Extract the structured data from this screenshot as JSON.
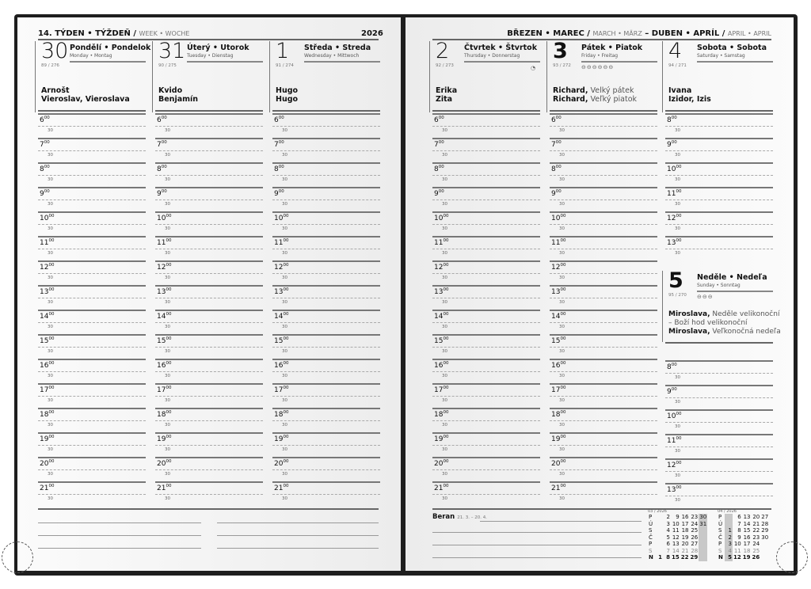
{
  "header_left": {
    "week_bold": "14. TÝDEN • TÝŽDEŇ /",
    "week_light": "WEEK • WOCHE",
    "year": "2026"
  },
  "header_right": {
    "m1_bold": "BŘEZEN • MAREC /",
    "m1_light": "MARCH • MÄRZ",
    "dash": "–",
    "m2_bold": "DUBEN • APRÍL /",
    "m2_light": "APRIL • APRIL"
  },
  "days": [
    {
      "num": "30",
      "count": "89 / 276",
      "name": "Pondělí • Pondelok",
      "sub": "Monday • Montag",
      "names": [
        [
          "Arnošt",
          ""
        ],
        [
          "Vieroslav, Vieroslava",
          ""
        ]
      ],
      "symbols": ""
    },
    {
      "num": "31",
      "count": "90 / 275",
      "name": "Úterý • Utorok",
      "sub": "Tuesday • Dienstag",
      "names": [
        [
          "Kvido",
          ""
        ],
        [
          "Benjamín",
          ""
        ]
      ],
      "symbols": ""
    },
    {
      "num": "1",
      "count": "91 / 274",
      "name": "Středa • Streda",
      "sub": "Wednesday • Mittwoch",
      "names": [
        [
          "Hugo",
          ""
        ],
        [
          "Hugo",
          ""
        ]
      ],
      "symbols": ""
    },
    {
      "num": "2",
      "count": "92 / 273",
      "name": "Čtvrtek • Štvrtok",
      "sub": "Thursday • Donnerstag",
      "names": [
        [
          "Erika",
          ""
        ],
        [
          "Zita",
          ""
        ]
      ],
      "symbols": "◔"
    },
    {
      "num": "3",
      "count": "93 / 272",
      "name": "Pátek • Piatok",
      "sub": "Friday • Freitag",
      "names": [
        [
          "Richard,",
          " Velký pátek"
        ],
        [
          "Richard,",
          " Veľký piatok"
        ]
      ],
      "symbols": "⊖⊖⊖⊖⊖⊖",
      "bold": true
    },
    {
      "num": "4",
      "count": "94 / 271",
      "name": "Sobota • Sobota",
      "sub": "Saturday • Samstag",
      "names": [
        [
          "Ivana",
          ""
        ],
        [
          "Izidor, Izis",
          ""
        ]
      ],
      "symbols": ""
    }
  ],
  "sunday": {
    "num": "5",
    "count": "95 / 270",
    "name": "Neděle • Nedeľa",
    "sub": "Sunday • Sonntag",
    "symbols": "⊖⊖⊖",
    "names": [
      [
        "Miroslava,",
        " Neděle velikonoční"
      ],
      [
        "",
        "– Boží hod velikonoční"
      ],
      [
        "Miroslava,",
        " Veľkonočná nedeľa"
      ]
    ]
  },
  "hours_full": [
    "6",
    "7",
    "8",
    "9",
    "10",
    "11",
    "12",
    "13",
    "14",
    "15",
    "16",
    "17",
    "18",
    "19",
    "20",
    "21"
  ],
  "hours_weekend": [
    "8",
    "9",
    "10",
    "11",
    "12",
    "13"
  ],
  "minute_label": "30",
  "hour_suffix": "00",
  "zodiac": {
    "name": "Beran",
    "range": "21. 3. – 20. 4."
  },
  "mini_calendars": [
    {
      "label": "03 / 2026",
      "highlight_col": 5,
      "rows": [
        [
          "P",
          "",
          "2",
          "9",
          "16",
          "23",
          "30"
        ],
        [
          "Ú",
          "",
          "3",
          "10",
          "17",
          "24",
          "31"
        ],
        [
          "S",
          "",
          "4",
          "11",
          "18",
          "25",
          ""
        ],
        [
          "Č",
          "",
          "5",
          "12",
          "19",
          "26",
          ""
        ],
        [
          "P",
          "",
          "6",
          "13",
          "20",
          "27",
          ""
        ],
        [
          "S",
          "",
          "7",
          "14",
          "21",
          "28",
          ""
        ],
        [
          "N",
          "1",
          "8",
          "15",
          "22",
          "29",
          ""
        ]
      ]
    },
    {
      "label": "04 / 2026",
      "highlight_col": 0,
      "rows": [
        [
          "P",
          "",
          "6",
          "13",
          "20",
          "27"
        ],
        [
          "Ú",
          "",
          "7",
          "14",
          "21",
          "28"
        ],
        [
          "S",
          "1",
          "8",
          "15",
          "22",
          "29"
        ],
        [
          "Č",
          "2",
          "9",
          "16",
          "23",
          "30"
        ],
        [
          "P",
          "3",
          "10",
          "17",
          "24",
          ""
        ],
        [
          "S",
          "4",
          "11",
          "18",
          "25",
          ""
        ],
        [
          "N",
          "5",
          "12",
          "19",
          "26",
          ""
        ]
      ]
    }
  ]
}
